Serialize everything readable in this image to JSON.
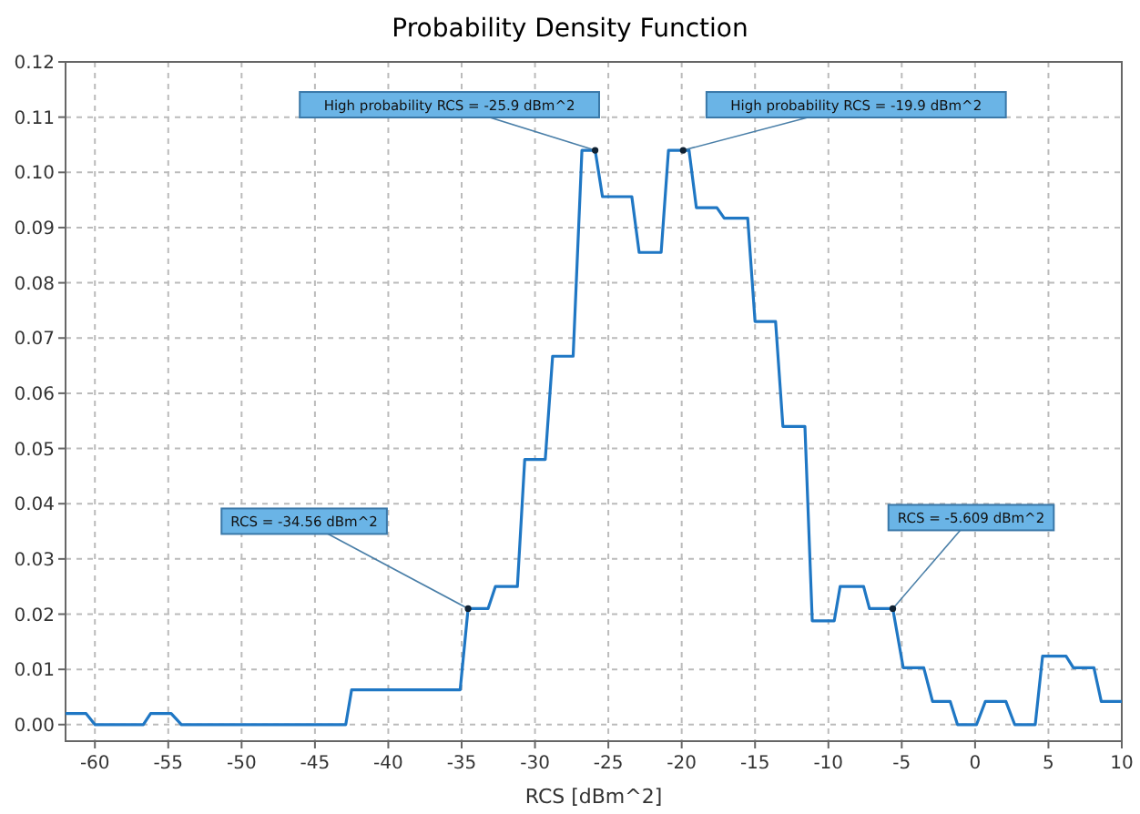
{
  "chart_data": {
    "type": "line",
    "title": "Probability Density Function",
    "xlabel": "RCS [dBm^2]",
    "x": [
      -62,
      -60.6,
      -60.0,
      -56.7,
      -56.2,
      -54.8,
      -54.1,
      -42.9,
      -42.5,
      -35.1,
      -34.56,
      -33.2,
      -32.7,
      -31.2,
      -30.7,
      -29.3,
      -28.8,
      -27.4,
      -26.8,
      -25.9,
      -25.4,
      -23.4,
      -22.9,
      -21.4,
      -20.9,
      -19.9,
      -19.5,
      -19.0,
      -17.6,
      -17.1,
      -15.5,
      -15.0,
      -13.6,
      -13.1,
      -11.6,
      -11.1,
      -9.6,
      -9.2,
      -7.6,
      -7.2,
      -5.609,
      -4.9,
      -3.5,
      -2.9,
      -1.7,
      -1.2,
      0.1,
      0.7,
      2.1,
      2.7,
      4.1,
      4.6,
      6.2,
      6.7,
      8.1,
      8.6,
      10
    ],
    "series": [
      {
        "color": "#1f77c4",
        "values": [
          0.002,
          0.002,
          0,
          0,
          0.002,
          0.002,
          0,
          0,
          0.0063,
          0.0063,
          0.021,
          0.021,
          0.025,
          0.025,
          0.048,
          0.048,
          0.0667,
          0.0667,
          0.104,
          0.104,
          0.0956,
          0.0956,
          0.0855,
          0.0855,
          0.104,
          0.104,
          0.104,
          0.0936,
          0.0936,
          0.0917,
          0.0917,
          0.073,
          0.073,
          0.054,
          0.054,
          0.0188,
          0.0188,
          0.025,
          0.025,
          0.021,
          0.021,
          0.0103,
          0.0103,
          0.0042,
          0.0042,
          0,
          0,
          0.0042,
          0.0042,
          0,
          0,
          0.0124,
          0.0124,
          0.0103,
          0.0103,
          0.0042,
          0.0042
        ]
      }
    ],
    "xlim": [
      -62,
      10
    ],
    "xticks": [
      -60,
      -55,
      -50,
      -45,
      -40,
      -35,
      -30,
      -25,
      -20,
      -15,
      -10,
      -5,
      0,
      5,
      10
    ],
    "ylim": [
      -0.003,
      0.12
    ],
    "yticks": [
      {
        "value": 0,
        "label": "0.00"
      },
      0.01,
      0.02,
      0.03,
      0.04,
      0.05,
      0.06,
      0.07,
      0.08,
      0.09,
      {
        "value": 0.1,
        "label": "0.10"
      },
      0.11,
      0.12
    ],
    "grid": true,
    "marker": "none",
    "line_style": "solid",
    "annotations": [
      {
        "text": "RCS = -34.56 dBm^2",
        "x": -34.56,
        "y": 0.021
      },
      {
        "text": "High probability RCS = -25.9 dBm^2",
        "x": -25.9,
        "y": 0.104
      },
      {
        "text": "High probability RCS = -19.9 dBm^2",
        "x": -19.9,
        "y": 0.104
      },
      {
        "text": "RCS = -5.609 dBm^2",
        "x": -5.609,
        "y": 0.021
      }
    ]
  }
}
